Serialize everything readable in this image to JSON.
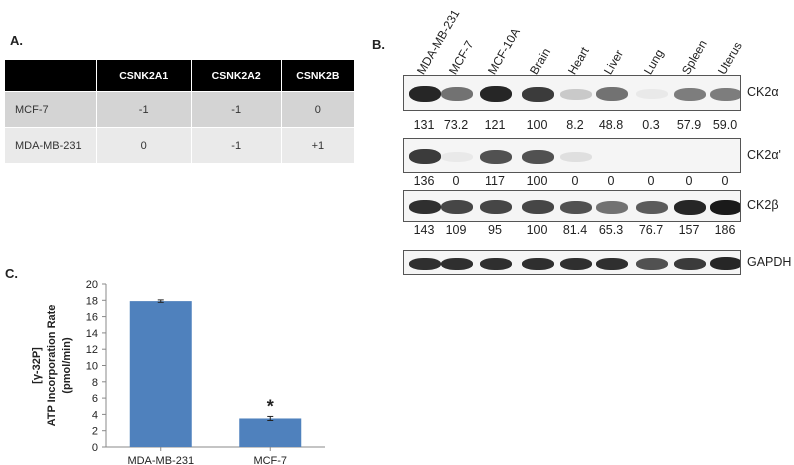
{
  "panel_a": {
    "label": "A.",
    "columns": [
      "",
      "CSNK2A1",
      "CSNK2A2",
      "CSNK2B"
    ],
    "rows": [
      {
        "name": "MCF-7",
        "values": [
          "-1",
          "-1",
          "0"
        ]
      },
      {
        "name": "MDA-MB-231",
        "values": [
          "0",
          "-1",
          "+1"
        ]
      }
    ]
  },
  "panel_b": {
    "label": "B.",
    "lanes": [
      "MDA-MB-231",
      "MCF-7",
      "MCF-10A",
      "Brain",
      "Heart",
      "Liver",
      "Lung",
      "Spleen",
      "Uterus"
    ],
    "blots": [
      {
        "name": "CK2α",
        "quant": [
          "131",
          "73.2",
          "121",
          "100",
          "8.2",
          "48.8",
          "0.3",
          "57.9",
          "59.0"
        ]
      },
      {
        "name": "CK2α'",
        "quant": [
          "136",
          "0",
          "117",
          "100",
          "0",
          "0",
          "0",
          "0",
          "0"
        ]
      },
      {
        "name": "CK2β",
        "quant": [
          "143",
          "109",
          "95",
          "100",
          "81.4",
          "65.3",
          "76.7",
          "157",
          "186"
        ]
      },
      {
        "name": "GAPDH",
        "quant": []
      }
    ]
  },
  "panel_c": {
    "label": "C.",
    "ylabel_lines": [
      "[γ-32P]",
      "ATP Incorporation Rate",
      "(pmol/min)"
    ],
    "significance_marker": "*"
  },
  "chart_data": {
    "type": "bar",
    "categories": [
      "MDA-MB-231",
      "MCF-7"
    ],
    "values": [
      17.9,
      3.5
    ],
    "errors": [
      0.15,
      0.25
    ],
    "title": "",
    "xlabel": "",
    "ylabel": "[γ-32P] ATP Incorporation Rate (pmol/min)",
    "ylim": [
      0,
      20
    ],
    "yticks": [
      0,
      2,
      4,
      6,
      8,
      10,
      12,
      14,
      16,
      18,
      20
    ],
    "bar_color": "#4f81bd",
    "grid": false
  }
}
